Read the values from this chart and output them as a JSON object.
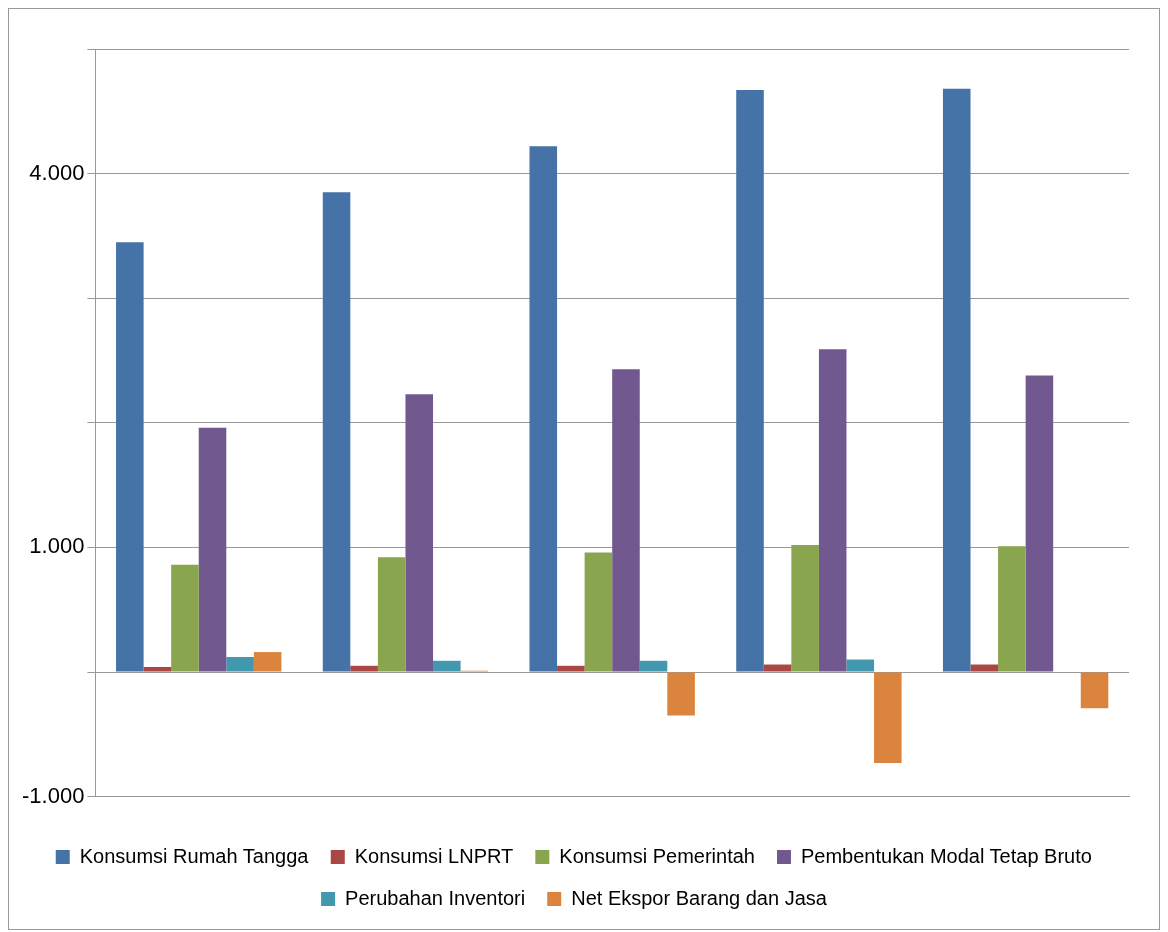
{
  "chart_data": {
    "type": "bar",
    "categories": [
      null,
      null,
      null,
      null,
      null
    ],
    "series": [
      {
        "name": "Konsumsi Rumah Tangga",
        "color": "#4572a7",
        "values": [
          3450,
          3850,
          4220,
          4670,
          4680
        ]
      },
      {
        "name": "Konsumsi LNPRT",
        "color": "#aa4643",
        "values": [
          40,
          50,
          50,
          60,
          60
        ]
      },
      {
        "name": "Konsumsi Pemerintah",
        "color": "#89a54e",
        "values": [
          860,
          920,
          960,
          1020,
          1010
        ]
      },
      {
        "name": "Pembentukan Modal Tetap Bruto",
        "color": "#71588f",
        "values": [
          1960,
          2230,
          2430,
          2590,
          2380
        ]
      },
      {
        "name": "Perubahan Inventori",
        "color": "#4198af",
        "values": [
          120,
          90,
          90,
          100,
          null
        ]
      },
      {
        "name": "Net Ekspor Barang dan Jasa",
        "color": "#db843d",
        "values": [
          160,
          10,
          -350,
          -730,
          -290
        ]
      }
    ],
    "ylim": [
      -1000,
      5000
    ],
    "yticks": [
      {
        "value": -1000,
        "label": "-1.000"
      },
      {
        "value": 0,
        "label": null
      },
      {
        "value": 1000,
        "label": "1.000"
      },
      {
        "value": 2000,
        "label": null
      },
      {
        "value": 3000,
        "label": null
      },
      {
        "value": 4000,
        "label": "4.000"
      },
      {
        "value": 5000,
        "label": null
      }
    ],
    "grid": "y",
    "legend": "bottom"
  }
}
